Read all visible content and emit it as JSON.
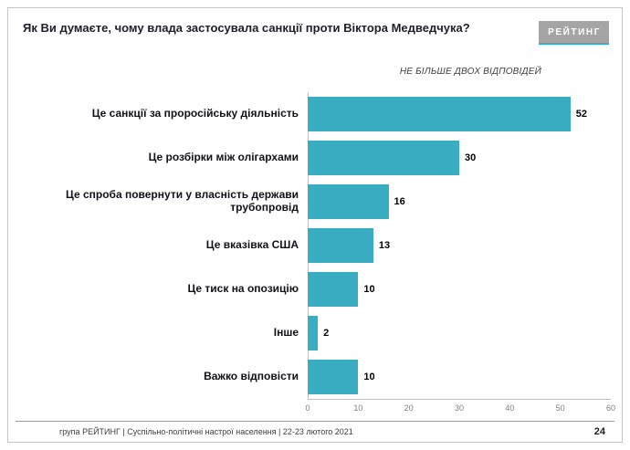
{
  "page": {
    "title": "Як Ви думаєте, чому влада застосувала санкції проти Віктора Медведчука?",
    "subtitle": "НЕ БІЛЬШЕ ДВОХ ВІДПОВІДЕЙ",
    "logo_text": "РЕЙТИНГ",
    "footer_text": "група РЕЙТИНГ | Суспільно-політичні настрої населення  | 22-23 лютого 2021",
    "page_number": "24"
  },
  "colors": {
    "bar": "#3badc2",
    "accent": "#3badc2",
    "logo_bg": "#a5a5a5",
    "axis_text": "#7f7f7f"
  },
  "chart_data": {
    "type": "bar",
    "orientation": "horizontal",
    "title": "Як Ви думаєте, чому влада застосувала санкції проти Віктора Медведчука?",
    "subtitle": "НЕ БІЛЬШЕ ДВОХ ВІДПОВІДЕЙ",
    "categories": [
      "Це санкції за проросійську діяльність",
      "Це розбірки між олігархами",
      "Це спроба повернути у власність держави трубопровід",
      "Це вказівка США",
      "Це тиск на опозицію",
      "Інше",
      "Важко відповісти"
    ],
    "values": [
      52,
      30,
      16,
      13,
      10,
      2,
      10
    ],
    "xlim": [
      0,
      60
    ],
    "xticks": [
      0,
      10,
      20,
      30,
      40,
      50,
      60
    ],
    "xlabel": "",
    "ylabel": "",
    "grid": false,
    "legend": false
  }
}
